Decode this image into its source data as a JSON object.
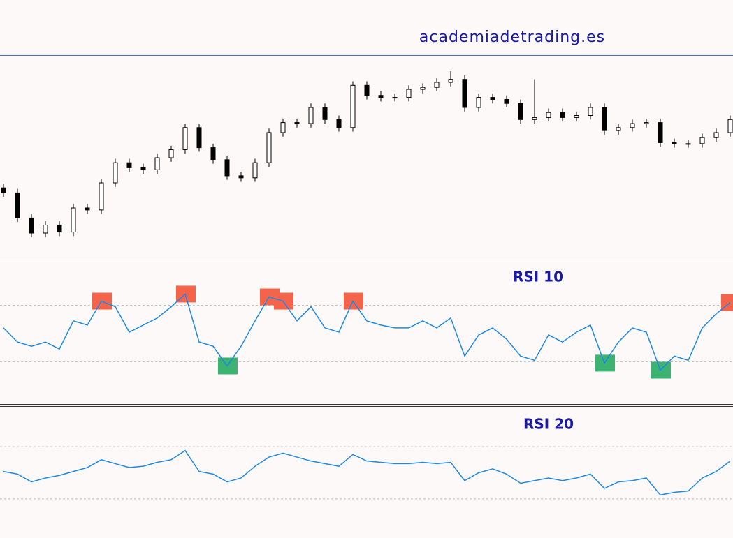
{
  "header": {
    "title": "academiadetrading.es"
  },
  "chart_data": [
    {
      "type": "candlestick",
      "ylim": [
        90,
        290
      ],
      "up_color": "#ffffff",
      "down_color": "#000000",
      "open": [
        160,
        155,
        130,
        115,
        123,
        116,
        140,
        138,
        165,
        185,
        180,
        178,
        190,
        198,
        220,
        200,
        188,
        172,
        170,
        185,
        215,
        225,
        224,
        240,
        228,
        220,
        262,
        252,
        250,
        250,
        258,
        260,
        265,
        268,
        240,
        250,
        248,
        244,
        228,
        230,
        235,
        230,
        232,
        240,
        217,
        220,
        224,
        225,
        205,
        204,
        204,
        210,
        215
      ],
      "high": [
        164,
        159,
        134,
        127,
        127,
        144,
        144,
        169,
        189,
        189,
        184,
        194,
        202,
        224,
        224,
        204,
        192,
        176,
        189,
        219,
        229,
        229,
        244,
        244,
        232,
        266,
        266,
        256,
        254,
        262,
        264,
        269,
        276,
        272,
        254,
        254,
        252,
        248,
        268,
        239,
        239,
        236,
        244,
        244,
        224,
        228,
        229,
        229,
        209,
        208,
        214,
        219,
        232
      ],
      "low": [
        151,
        126,
        111,
        111,
        112,
        112,
        134,
        134,
        161,
        176,
        174,
        174,
        186,
        194,
        196,
        184,
        168,
        166,
        166,
        181,
        211,
        220,
        220,
        224,
        216,
        216,
        248,
        246,
        246,
        246,
        254,
        256,
        261,
        236,
        236,
        244,
        240,
        224,
        224,
        226,
        226,
        226,
        228,
        213,
        213,
        216,
        220,
        201,
        200,
        200,
        200,
        206,
        211
      ],
      "close": [
        155,
        130,
        115,
        123,
        116,
        140,
        138,
        165,
        185,
        180,
        178,
        190,
        198,
        220,
        200,
        188,
        172,
        170,
        185,
        215,
        225,
        224,
        240,
        228,
        220,
        262,
        252,
        250,
        250,
        258,
        260,
        265,
        268,
        240,
        250,
        248,
        244,
        228,
        230,
        235,
        230,
        232,
        240,
        217,
        220,
        224,
        225,
        205,
        204,
        204,
        210,
        215,
        228
      ]
    },
    {
      "type": "line",
      "title": "RSI 10",
      "color": "#1e88e5",
      "ylim": [
        0,
        100
      ],
      "levels": [
        70,
        30
      ],
      "overbought_color": "#f4644a",
      "oversold_color": "#3cb371",
      "values": [
        54,
        44,
        41,
        44,
        39,
        59,
        56,
        73,
        69,
        51,
        56,
        61,
        69,
        78,
        44,
        41,
        27,
        41,
        59,
        76,
        73,
        59,
        69,
        54,
        51,
        73,
        59,
        56,
        54,
        54,
        59,
        54,
        61,
        34,
        49,
        54,
        46,
        34,
        31,
        49,
        44,
        51,
        56,
        29,
        44,
        54,
        51,
        24,
        34,
        31,
        54,
        64,
        72
      ]
    },
    {
      "type": "line",
      "title": "RSI 20",
      "color": "#1e88e5",
      "ylim": [
        0,
        100
      ],
      "levels": [
        70,
        30
      ],
      "overbought_color": "#f4644a",
      "oversold_color": "#3cb371",
      "values": [
        51,
        49,
        43,
        46,
        48,
        51,
        54,
        60,
        57,
        54,
        55,
        58,
        60,
        67,
        51,
        49,
        43,
        46,
        55,
        62,
        65,
        62,
        59,
        57,
        55,
        64,
        59,
        58,
        57,
        57,
        58,
        57,
        58,
        44,
        50,
        53,
        49,
        42,
        44,
        46,
        44,
        46,
        49,
        38,
        43,
        44,
        46,
        33,
        35,
        36,
        46,
        51,
        59
      ]
    }
  ]
}
